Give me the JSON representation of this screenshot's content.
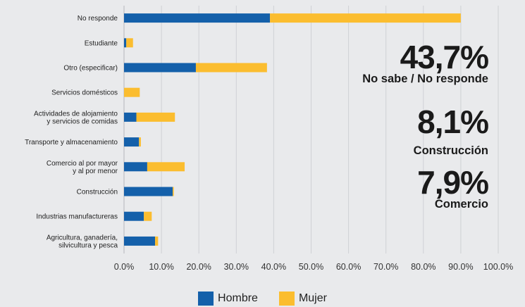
{
  "chart_data": {
    "type": "bar",
    "orientation": "horizontal",
    "stacked": true,
    "categories": [
      "No responde",
      "Estudiante",
      "Otro (especificar)",
      "Servicios domésticos",
      "Actividades de alojamiento\ny servicios de comidas",
      "Transporte y almacenamiento",
      "Comercio al por mayor\ny al por menor",
      "Construcción",
      "Industrias manufactureras",
      "Agricultura, ganadería,\nsilvicultura y pesca"
    ],
    "series": [
      {
        "name": "Hombre",
        "color": "#1460aa",
        "values": [
          39.0,
          0.6,
          19.2,
          0.0,
          3.3,
          4.0,
          6.2,
          13.0,
          5.3,
          8.3
        ]
      },
      {
        "name": "Mujer",
        "color": "#fbbd2f",
        "values": [
          51.0,
          1.8,
          19.0,
          4.2,
          10.3,
          0.5,
          10.0,
          0.3,
          2.1,
          0.8
        ]
      }
    ],
    "xlim": [
      0,
      100
    ],
    "xticks": [
      "0.0%",
      "10.0%",
      "20.0%",
      "30.0%",
      "40.0%",
      "50.0%",
      "60.0%",
      "70.0%",
      "80.0%",
      "90.0%",
      "100.0%"
    ],
    "grid": true,
    "legend": "bottom-center"
  },
  "callouts": [
    {
      "value": "43,7%",
      "label": "No sabe / No responde"
    },
    {
      "value": "8,1%",
      "label": "Construcción"
    },
    {
      "value": "7,9%",
      "label": "Comercio"
    }
  ]
}
